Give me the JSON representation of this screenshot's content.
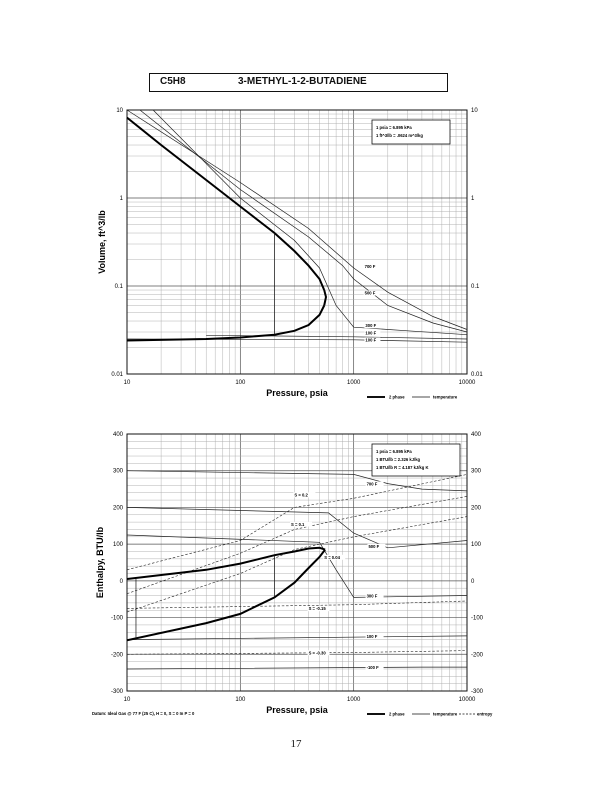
{
  "header": {
    "formula": "C5H8",
    "name": "3-METHYL-1-2-BUTADIENE"
  },
  "page_number": "17",
  "chart_data": [
    {
      "type": "line",
      "xscale": "log",
      "yscale": "log",
      "xlim": [
        10,
        10000
      ],
      "ylim": [
        0.01,
        10
      ],
      "xlabel": "Pressure,  psia",
      "ylabel": "Volume, ft^3/lb",
      "x_ticks": [
        "10",
        "100",
        "1000",
        "10000"
      ],
      "y_ticks": [
        "10",
        "1",
        "0.1",
        "0.01"
      ],
      "y_ticks_right": [
        "10",
        "1",
        "0.1",
        "0.01"
      ],
      "conversion_box": [
        "1 psia  =  6.895 kPa",
        "1 ft^3/lb  =  .0624 m^3/kg"
      ],
      "legend": [
        "2 phase",
        "temperature"
      ],
      "two_phase_dome": {
        "vapor": [
          [
            10,
            8.2
          ],
          [
            20,
            4.0
          ],
          [
            50,
            1.6
          ],
          [
            100,
            0.8
          ],
          [
            200,
            0.4
          ],
          [
            300,
            0.25
          ],
          [
            400,
            0.17
          ],
          [
            500,
            0.12
          ],
          [
            550,
            0.09
          ]
        ],
        "liquid": [
          [
            10,
            0.024
          ],
          [
            50,
            0.025
          ],
          [
            100,
            0.026
          ],
          [
            200,
            0.028
          ],
          [
            300,
            0.031
          ],
          [
            400,
            0.036
          ],
          [
            500,
            0.047
          ],
          [
            550,
            0.06
          ]
        ]
      },
      "isotherm_labels": [
        "700 F",
        "500 F",
        "300 F",
        "100 F",
        "100 F"
      ],
      "isotherms": [
        {
          "label": "700 F",
          "points": [
            [
              10,
              10
            ],
            [
              100,
              1.5
            ],
            [
              400,
              0.45
            ],
            [
              1000,
              0.16
            ],
            [
              2000,
              0.085
            ],
            [
              5000,
              0.045
            ],
            [
              10000,
              0.032
            ]
          ]
        },
        {
          "label": "500 F",
          "points": [
            [
              13,
              10
            ],
            [
              100,
              1.25
            ],
            [
              400,
              0.36
            ],
            [
              800,
              0.17
            ],
            [
              1000,
              0.12
            ],
            [
              2000,
              0.06
            ],
            [
              5000,
              0.038
            ],
            [
              10000,
              0.03
            ]
          ]
        },
        {
          "label": "300 F",
          "points": [
            [
              17,
              10
            ],
            [
              100,
              1.0
            ],
            [
              300,
              0.33
            ],
            [
              500,
              0.16
            ],
            [
              700,
              0.06
            ],
            [
              1000,
              0.034
            ],
            [
              3000,
              0.031
            ],
            [
              10000,
              0.028
            ]
          ]
        },
        {
          "label": "100 F",
          "points": [
            [
              50,
              0.0275
            ],
            [
              1000,
              0.0265
            ],
            [
              10000,
              0.025
            ]
          ]
        },
        {
          "label": "100 F",
          "points": [
            [
              10,
              0.025
            ],
            [
              1000,
              0.0245
            ],
            [
              10000,
              0.023
            ]
          ]
        }
      ]
    },
    {
      "type": "line",
      "xscale": "log",
      "xlim": [
        10,
        10000
      ],
      "ylim": [
        -300,
        400
      ],
      "xlabel": "Pressure,  psia",
      "ylabel": "Enthalpy, BTU/lb",
      "x_ticks": [
        "10",
        "100",
        "1000",
        "10000"
      ],
      "y_ticks": [
        "400",
        "300",
        "200",
        "100",
        "0",
        "-100",
        "-200",
        "-300"
      ],
      "y_ticks_right": [
        "400",
        "300",
        "200",
        "100",
        "0",
        "-100",
        "-200",
        "-300"
      ],
      "conversion_box": [
        "1 psia  =  6.895 kPa",
        "1 BTU/lb  =  2.326 kJ/kg",
        "1 BTU/lb R  =  4.187 kJ/kg K"
      ],
      "legend": [
        "2 phase",
        "temperature",
        "entropy"
      ],
      "footnote": "Datum: Ideal Gas @ 77 F (25 C),  H = 0,  S = 0 In P = 0",
      "isotherm_labels": [
        "700 F",
        "500 F",
        "300 F",
        "100 F",
        "-100 F"
      ],
      "entropy_labels": [
        "S = 0.2",
        "S = 0.1",
        "S = 0.04",
        "S = -0.15",
        "S = -0.30"
      ],
      "two_phase_dome": {
        "vapor": [
          [
            10,
            5
          ],
          [
            50,
            30
          ],
          [
            100,
            47
          ],
          [
            200,
            70
          ],
          [
            300,
            80
          ],
          [
            400,
            88
          ],
          [
            500,
            90
          ],
          [
            560,
            85
          ]
        ],
        "liquid": [
          [
            10,
            -162
          ],
          [
            50,
            -115
          ],
          [
            100,
            -90
          ],
          [
            200,
            -45
          ],
          [
            300,
            -5
          ],
          [
            400,
            35
          ],
          [
            500,
            65
          ],
          [
            560,
            85
          ]
        ]
      },
      "isotherms": [
        {
          "label": "700 F",
          "points": [
            [
              10,
              300
            ],
            [
              1000,
              290
            ],
            [
              2000,
              265
            ],
            [
              4000,
              250
            ],
            [
              10000,
              245
            ]
          ]
        },
        {
          "label": "500 F",
          "points": [
            [
              10,
              200
            ],
            [
              600,
              185
            ],
            [
              1000,
              130
            ],
            [
              2000,
              90
            ],
            [
              10000,
              110
            ]
          ]
        },
        {
          "label": "300 F",
          "points": [
            [
              10,
              125
            ],
            [
              500,
              105
            ],
            [
              700,
              30
            ],
            [
              1000,
              -45
            ],
            [
              10000,
              -40
            ]
          ]
        },
        {
          "label": "100 F",
          "points": [
            [
              10,
              -160
            ],
            [
              10000,
              -150
            ]
          ]
        },
        {
          "label": "-100 F",
          "points": [
            [
              10,
              -240
            ],
            [
              4000,
              -235
            ],
            [
              10000,
              -235
            ]
          ]
        }
      ],
      "entropy_lines": [
        {
          "label": "S = 0.2",
          "points": [
            [
              10,
              30
            ],
            [
              100,
              110
            ],
            [
              300,
              200
            ],
            [
              1000,
              225
            ],
            [
              10000,
              290
            ]
          ]
        },
        {
          "label": "S = 0.1",
          "points": [
            [
              10,
              -35
            ],
            [
              100,
              75
            ],
            [
              300,
              140
            ],
            [
              1000,
              175
            ],
            [
              10000,
              230
            ]
          ]
        },
        {
          "label": "S = 0.04",
          "points": [
            [
              10,
              -85
            ],
            [
              100,
              20
            ],
            [
              300,
              85
            ],
            [
              1000,
              120
            ],
            [
              10000,
              175
            ]
          ]
        },
        {
          "label": "S = -0.15",
          "points": [
            [
              10,
              -75
            ],
            [
              1000,
              -65
            ],
            [
              10000,
              -55
            ]
          ]
        },
        {
          "label": "S = -0.30",
          "points": [
            [
              10,
              -200
            ],
            [
              1000,
              -195
            ],
            [
              10000,
              -190
            ]
          ]
        }
      ]
    }
  ]
}
